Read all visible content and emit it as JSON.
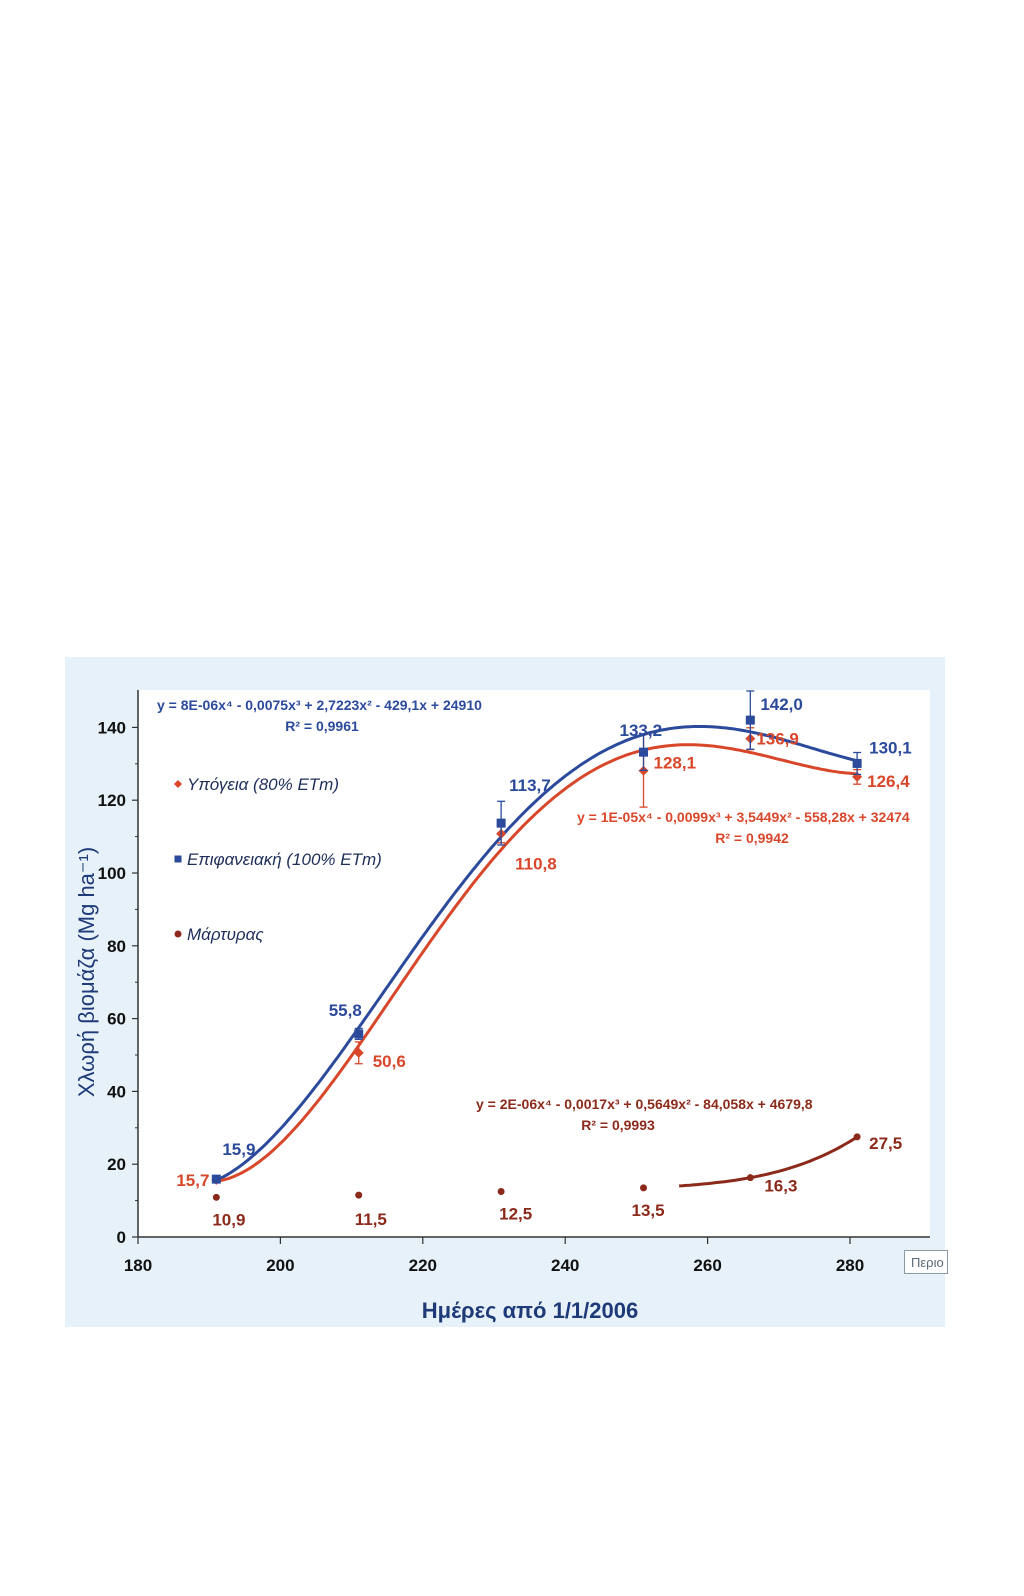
{
  "chart_data": {
    "type": "line",
    "title": "",
    "xlabel": "Ημέρες από 1/1/2006",
    "ylabel": "Χλωρή βιομάζα (Mg ha⁻¹)",
    "xlim": [
      180,
      290
    ],
    "ylim": [
      0,
      150
    ],
    "x_ticks": [
      180,
      200,
      220,
      240,
      260,
      280
    ],
    "y_ticks": [
      0,
      20,
      40,
      60,
      80,
      100,
      120,
      140
    ],
    "x_tick_labels": [
      "180",
      "200",
      "220",
      "240",
      "260",
      "280"
    ],
    "y_tick_labels": [
      "0",
      "20",
      "40",
      "60",
      "80",
      "100",
      "120",
      "140"
    ],
    "series": [
      {
        "name": "Υπόγεια (80% ETm)",
        "color": "#d9472b",
        "marker": "diamond",
        "x": [
          191,
          211,
          231,
          251,
          266,
          281
        ],
        "values": [
          15.7,
          50.6,
          110.8,
          128.1,
          136.9,
          126.4
        ],
        "value_labels": [
          "15,7",
          "50,6",
          "110,8",
          "128,1",
          "136,9",
          "126,4"
        ],
        "errors": [
          0,
          3,
          2.5,
          10,
          3,
          2
        ],
        "equation": "y = 1E-05x⁴ - 0,0099x³ + 3,5449x² - 558,28x + 32474",
        "r2": "R² = 0,9942"
      },
      {
        "name": "Επιφανειακή (100% ETm)",
        "color": "#2b4a9c",
        "marker": "square",
        "x": [
          191,
          211,
          231,
          251,
          266,
          281
        ],
        "values": [
          15.9,
          55.8,
          113.7,
          133.2,
          142.0,
          130.1
        ],
        "value_labels": [
          "15,9",
          "55,8",
          "113,7",
          "133,2",
          "142,0",
          "130,1"
        ],
        "errors": [
          0,
          1.5,
          6,
          5,
          8,
          3
        ],
        "equation": "y = 8E-06x⁴ - 0,0075x³ + 2,7223x² - 429,1x + 24910",
        "r2": "R² = 0,9961"
      },
      {
        "name": "Μάρτυρας",
        "color": "#8b2a1a",
        "marker": "circle",
        "x": [
          191,
          211,
          231,
          251,
          266,
          281
        ],
        "values": [
          10.9,
          11.5,
          12.5,
          13.5,
          16.3,
          27.5
        ],
        "value_labels": [
          "10,9",
          "11,5",
          "12,5",
          "13,5",
          "16,3",
          "27,5"
        ],
        "errors": [
          0,
          0,
          0,
          0,
          0,
          0
        ],
        "equation": "y = 2E-06x⁴ - 0,0017x³ + 0,5649x² - 84,058x + 4679,8",
        "r2": "R² = 0,9993"
      }
    ],
    "legend": {
      "position": "left inside plot",
      "items": [
        "Υπόγεια (80% ETm)",
        "Επιφανειακή (100% ETm)",
        "Μάρτυρας"
      ]
    }
  },
  "corner_tag": "Περιο",
  "colors": {
    "panel_bg": "#e6f1f9",
    "plot_bg": "#ffffff",
    "axis": "#333333"
  }
}
